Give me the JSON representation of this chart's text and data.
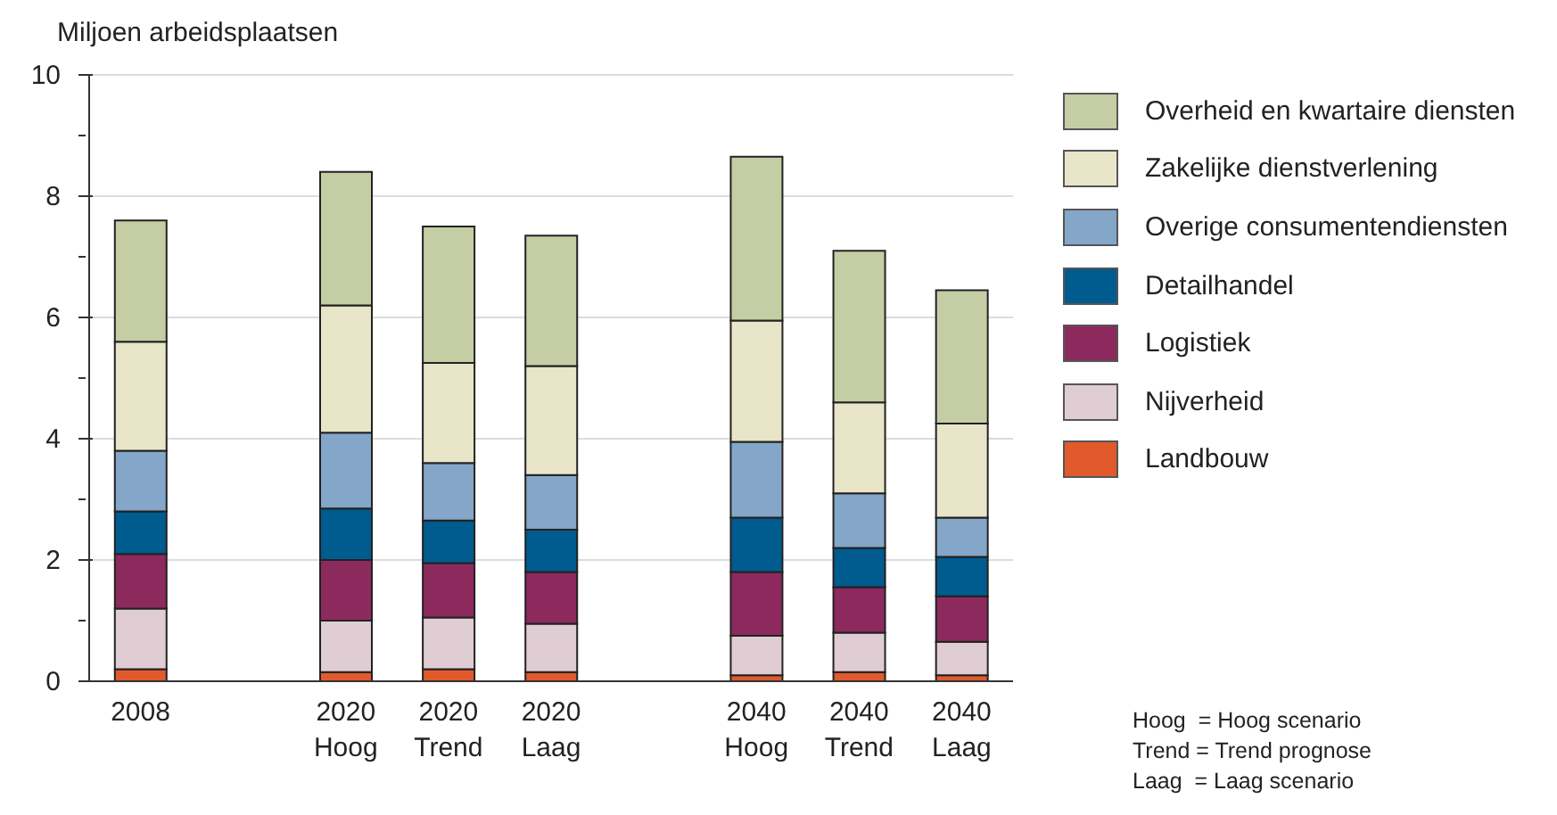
{
  "chart_data": {
    "type": "bar",
    "stacked": true,
    "ylabel": "Miljoen arbeidsplaatsen",
    "categories": [
      "2008",
      null,
      "2020\nHoog",
      "2020\nTrend",
      "2020\nLaag",
      null,
      "2040\nHoog",
      "2040\nTrend",
      "2040\nLaag"
    ],
    "series": [
      {
        "name": "Landbouw",
        "color": "#e05a2c",
        "values": [
          0.2,
          null,
          0.15,
          0.2,
          0.15,
          null,
          0.1,
          0.15,
          0.1
        ]
      },
      {
        "name": "Nijverheid",
        "color": "#e0ccd3",
        "values": [
          1.0,
          null,
          0.85,
          0.85,
          0.8,
          null,
          0.65,
          0.65,
          0.55
        ]
      },
      {
        "name": "Logistiek",
        "color": "#8c2a5e",
        "values": [
          0.9,
          null,
          1.0,
          0.9,
          0.85,
          null,
          1.05,
          0.75,
          0.75
        ]
      },
      {
        "name": "Detailhandel",
        "color": "#005b8f",
        "values": [
          0.7,
          null,
          0.85,
          0.7,
          0.7,
          null,
          0.9,
          0.65,
          0.65
        ]
      },
      {
        "name": "Overige consumentendiensten",
        "color": "#84a6c8",
        "values": [
          1.0,
          null,
          1.25,
          0.95,
          0.9,
          null,
          1.25,
          0.9,
          0.65
        ]
      },
      {
        "name": "Zakelijke dienstverlening",
        "color": "#e8e5c8",
        "values": [
          1.8,
          null,
          2.1,
          1.65,
          1.8,
          null,
          2.0,
          1.5,
          1.55
        ]
      },
      {
        "name": "Overheid en kwartaire diensten",
        "color": "#c5cda5",
        "values": [
          2.0,
          null,
          2.2,
          2.25,
          2.15,
          null,
          2.7,
          2.5,
          2.2
        ]
      }
    ],
    "ylim": [
      0,
      10
    ],
    "yticks": [
      0,
      {
        "value": 1,
        "label": null
      },
      2,
      {
        "value": 3,
        "label": null
      },
      4,
      {
        "value": 5,
        "label": null
      },
      6,
      {
        "value": 7,
        "label": null
      },
      8,
      {
        "value": 9,
        "label": null
      },
      10
    ],
    "grid": "y",
    "legend": "right",
    "annotations": [
      "Hoog  = Hoog scenario",
      "Trend = Trend prognose",
      "Laag  = Laag scenario"
    ]
  }
}
